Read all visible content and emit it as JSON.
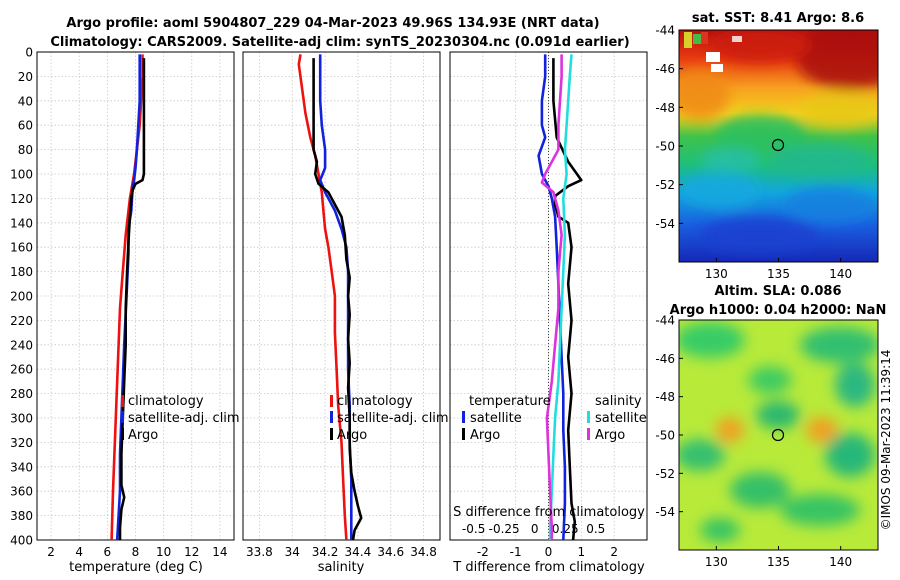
{
  "title": {
    "line1": "Argo profile: aoml 5904807_229 04-Mar-2023 49.96S 134.93E (NRT data)",
    "line2": "Climatology: CARS2009. Satellite-adj clim: synTS_20230304.nc (0.091d earlier)"
  },
  "copyright": "©IMOS 09-Mar-2023 11:39:14",
  "colors": {
    "red": "#ee1111",
    "blue": "#1122dd",
    "black": "#000000",
    "cyan": "#22dddd",
    "magenta": "#dd33dd",
    "grid": "#c8c8c8"
  },
  "chart_data": [
    {
      "type": "line",
      "name": "temperature-profile",
      "xlabel": "temperature (deg C)",
      "xlim": [
        1,
        15
      ],
      "xticks": [
        2,
        4,
        6,
        8,
        10,
        12,
        14
      ],
      "ylim": [
        0,
        400
      ],
      "yticks": [
        0,
        20,
        40,
        60,
        80,
        100,
        120,
        140,
        160,
        180,
        200,
        220,
        240,
        260,
        280,
        300,
        320,
        340,
        360,
        380,
        400
      ],
      "y_reversed": true,
      "grid": true,
      "legend": [
        "climatology",
        "satellite-adj. clim",
        "Argo"
      ],
      "legend_position": "lower-right",
      "series": [
        {
          "name": "climatology",
          "color": "red",
          "points": [
            [
              8.5,
              2
            ],
            [
              8.5,
              20
            ],
            [
              8.4,
              40
            ],
            [
              8.3,
              60
            ],
            [
              8.1,
              80
            ],
            [
              7.9,
              100
            ],
            [
              7.6,
              120
            ],
            [
              7.3,
              150
            ],
            [
              7.1,
              180
            ],
            [
              6.9,
              210
            ],
            [
              6.8,
              240
            ],
            [
              6.7,
              270
            ],
            [
              6.6,
              300
            ],
            [
              6.5,
              330
            ],
            [
              6.4,
              360
            ],
            [
              6.3,
              400
            ]
          ]
        },
        {
          "name": "satellite-adj. clim",
          "color": "blue",
          "points": [
            [
              8.3,
              2
            ],
            [
              8.3,
              20
            ],
            [
              8.3,
              40
            ],
            [
              8.2,
              60
            ],
            [
              8.1,
              80
            ],
            [
              8.0,
              95
            ],
            [
              7.9,
              105
            ],
            [
              7.8,
              110
            ],
            [
              7.7,
              130
            ],
            [
              7.5,
              145
            ],
            [
              7.5,
              165
            ],
            [
              7.4,
              190
            ],
            [
              7.3,
              215
            ],
            [
              7.2,
              240
            ],
            [
              7.1,
              270
            ],
            [
              7.0,
              300
            ],
            [
              6.9,
              330
            ],
            [
              6.9,
              360
            ],
            [
              6.8,
              380
            ],
            [
              6.7,
              400
            ]
          ]
        },
        {
          "name": "Argo",
          "color": "black",
          "points": [
            [
              8.6,
              5
            ],
            [
              8.6,
              40
            ],
            [
              8.6,
              80
            ],
            [
              8.6,
              100
            ],
            [
              8.5,
              105
            ],
            [
              8.0,
              108
            ],
            [
              7.8,
              113
            ],
            [
              7.7,
              120
            ],
            [
              7.6,
              135
            ],
            [
              7.5,
              155
            ],
            [
              7.4,
              180
            ],
            [
              7.3,
              210
            ],
            [
              7.3,
              240
            ],
            [
              7.2,
              270
            ],
            [
              7.1,
              300
            ],
            [
              7.0,
              330
            ],
            [
              7.0,
              355
            ],
            [
              7.2,
              365
            ],
            [
              7.0,
              375
            ],
            [
              6.9,
              390
            ],
            [
              6.9,
              400
            ]
          ]
        }
      ]
    },
    {
      "type": "line",
      "name": "salinity-profile",
      "xlabel": "salinity",
      "xlim": [
        33.7,
        34.9
      ],
      "xticks": [
        33.8,
        34,
        34.2,
        34.4,
        34.6,
        34.8
      ],
      "ylim": [
        0,
        400
      ],
      "y_reversed": true,
      "grid": true,
      "legend": [
        "climatology",
        "satellite-adj. clim",
        "Argo"
      ],
      "legend_position": "lower-right",
      "series": [
        {
          "name": "climatology",
          "color": "red",
          "points": [
            [
              34.05,
              2
            ],
            [
              34.04,
              10
            ],
            [
              34.06,
              30
            ],
            [
              34.08,
              50
            ],
            [
              34.11,
              70
            ],
            [
              34.14,
              85
            ],
            [
              34.16,
              100
            ],
            [
              34.18,
              115
            ],
            [
              34.19,
              130
            ],
            [
              34.2,
              145
            ],
            [
              34.22,
              160
            ],
            [
              34.24,
              180
            ],
            [
              34.26,
              200
            ],
            [
              34.26,
              230
            ],
            [
              34.27,
              260
            ],
            [
              34.28,
              290
            ],
            [
              34.3,
              320
            ],
            [
              34.31,
              350
            ],
            [
              34.32,
              380
            ],
            [
              34.33,
              400
            ]
          ]
        },
        {
          "name": "satellite-adj. clim",
          "color": "blue",
          "points": [
            [
              34.17,
              2
            ],
            [
              34.17,
              20
            ],
            [
              34.17,
              40
            ],
            [
              34.18,
              60
            ],
            [
              34.2,
              80
            ],
            [
              34.2,
              95
            ],
            [
              34.17,
              105
            ],
            [
              34.2,
              115
            ],
            [
              34.26,
              130
            ],
            [
              34.3,
              145
            ],
            [
              34.33,
              160
            ],
            [
              34.34,
              180
            ],
            [
              34.34,
              200
            ],
            [
              34.34,
              230
            ],
            [
              34.34,
              260
            ],
            [
              34.35,
              290
            ],
            [
              34.35,
              320
            ],
            [
              34.36,
              350
            ],
            [
              34.36,
              380
            ],
            [
              34.36,
              400
            ]
          ]
        },
        {
          "name": "Argo",
          "color": "black",
          "points": [
            [
              34.13,
              5
            ],
            [
              34.13,
              40
            ],
            [
              34.13,
              70
            ],
            [
              34.13,
              80
            ],
            [
              34.15,
              90
            ],
            [
              34.14,
              100
            ],
            [
              34.16,
              108
            ],
            [
              34.22,
              115
            ],
            [
              34.26,
              125
            ],
            [
              34.3,
              135
            ],
            [
              34.32,
              150
            ],
            [
              34.33,
              170
            ],
            [
              34.35,
              185
            ],
            [
              34.34,
              200
            ],
            [
              34.35,
              215
            ],
            [
              34.34,
              235
            ],
            [
              34.35,
              255
            ],
            [
              34.34,
              275
            ],
            [
              34.35,
              300
            ],
            [
              34.35,
              325
            ],
            [
              34.36,
              345
            ],
            [
              34.38,
              360
            ],
            [
              34.4,
              372
            ],
            [
              34.42,
              382
            ],
            [
              34.38,
              392
            ],
            [
              34.37,
              400
            ]
          ]
        }
      ]
    },
    {
      "type": "line",
      "name": "difference-profile",
      "xlabel": "T difference from climatology",
      "xlabel2": "S difference from climatology",
      "xlim": [
        -3,
        3
      ],
      "xticks": [
        -2,
        -1,
        0,
        1,
        2
      ],
      "xticks2": [
        -0.5,
        -0.25,
        0,
        0.25,
        0.5
      ],
      "xticks2_labels": [
        "-0.5",
        "-0.25",
        "0",
        "0.25",
        "0.5"
      ],
      "ylim": [
        0,
        400
      ],
      "y_reversed": true,
      "grid": true,
      "zero_line": true,
      "legend_groups": [
        {
          "title": "temperature",
          "items": [
            "satellite",
            "Argo"
          ]
        },
        {
          "title": "salinity",
          "items": [
            "satellite",
            "Argo"
          ]
        }
      ],
      "series": [
        {
          "name": "temperature satellite",
          "color": "blue",
          "points": [
            [
              -0.1,
              2
            ],
            [
              -0.1,
              20
            ],
            [
              -0.2,
              40
            ],
            [
              -0.2,
              60
            ],
            [
              -0.1,
              70
            ],
            [
              -0.3,
              85
            ],
            [
              -0.2,
              100
            ],
            [
              0.0,
              110
            ],
            [
              0.1,
              120
            ],
            [
              0.2,
              135
            ],
            [
              0.25,
              160
            ],
            [
              0.3,
              190
            ],
            [
              0.35,
              220
            ],
            [
              0.4,
              250
            ],
            [
              0.45,
              280
            ],
            [
              0.45,
              310
            ],
            [
              0.5,
              340
            ],
            [
              0.5,
              370
            ],
            [
              0.45,
              400
            ]
          ]
        },
        {
          "name": "temperature Argo",
          "color": "black",
          "points": [
            [
              0.15,
              5
            ],
            [
              0.15,
              40
            ],
            [
              0.25,
              70
            ],
            [
              0.6,
              90
            ],
            [
              1.0,
              105
            ],
            [
              0.6,
              110
            ],
            [
              0.2,
              118
            ],
            [
              0.2,
              125
            ],
            [
              0.3,
              135
            ],
            [
              0.6,
              140
            ],
            [
              0.7,
              160
            ],
            [
              0.6,
              190
            ],
            [
              0.7,
              220
            ],
            [
              0.6,
              250
            ],
            [
              0.7,
              280
            ],
            [
              0.6,
              310
            ],
            [
              0.65,
              340
            ],
            [
              0.7,
              370
            ],
            [
              0.8,
              385
            ],
            [
              0.75,
              400
            ]
          ]
        },
        {
          "name": "salinity satellite",
          "color": "cyan",
          "points": [
            [
              0.7,
              2
            ],
            [
              0.65,
              20
            ],
            [
              0.6,
              40
            ],
            [
              0.55,
              60
            ],
            [
              0.5,
              80
            ],
            [
              0.55,
              100
            ],
            [
              0.45,
              120
            ],
            [
              0.5,
              150
            ],
            [
              0.45,
              180
            ],
            [
              0.4,
              210
            ],
            [
              0.35,
              240
            ],
            [
              0.3,
              270
            ],
            [
              0.2,
              300
            ],
            [
              0.15,
              330
            ],
            [
              0.1,
              360
            ],
            [
              0.05,
              390
            ],
            [
              0.05,
              400
            ]
          ]
        },
        {
          "name": "salinity Argo",
          "color": "magenta",
          "points": [
            [
              0.4,
              2
            ],
            [
              0.4,
              20
            ],
            [
              0.35,
              40
            ],
            [
              0.3,
              60
            ],
            [
              0.3,
              80
            ],
            [
              -0.1,
              100
            ],
            [
              -0.2,
              107
            ],
            [
              0.15,
              115
            ],
            [
              0.3,
              130
            ],
            [
              0.4,
              150
            ],
            [
              0.3,
              180
            ],
            [
              0.3,
              210
            ],
            [
              0.2,
              240
            ],
            [
              0.1,
              270
            ],
            [
              -0.05,
              300
            ],
            [
              0.0,
              330
            ],
            [
              0.05,
              360
            ],
            [
              0.1,
              390
            ],
            [
              0.1,
              400
            ]
          ]
        }
      ]
    },
    {
      "type": "heatmap",
      "name": "sst-map",
      "title": "sat. SST: 8.41 Argo: 8.6",
      "xlim": [
        127,
        143
      ],
      "ylim": [
        -56,
        -44
      ],
      "xticks": [
        130,
        135,
        140
      ],
      "yticks": [
        -44,
        -46,
        -48,
        -50,
        -52,
        -54
      ],
      "marker": {
        "lon": 134.93,
        "lat": -49.96
      }
    },
    {
      "type": "heatmap",
      "name": "sla-map",
      "title_line1": "Altim. SLA: 0.086",
      "title_line2": "Argo h1000: 0.04 h2000: NaN",
      "xlim": [
        127,
        143
      ],
      "ylim": [
        -56,
        -44
      ],
      "xticks": [
        130,
        135,
        140
      ],
      "yticks": [
        -44,
        -46,
        -48,
        -50,
        -52,
        -54
      ],
      "marker": {
        "lon": 134.93,
        "lat": -49.96
      }
    }
  ]
}
